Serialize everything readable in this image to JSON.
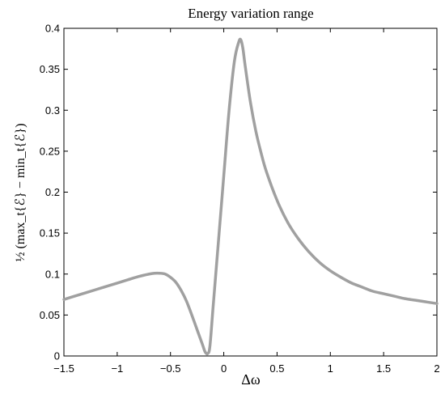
{
  "chart_data": {
    "type": "line",
    "title": "Energy variation range",
    "xlabel": "Δω",
    "ylabel": "½ (max_t{ℰ} − min_t{ℰ})",
    "xlim": [
      -1.5,
      2
    ],
    "ylim": [
      0,
      0.4
    ],
    "xticks": [
      -1.5,
      -1,
      -0.5,
      0,
      0.5,
      1,
      1.5,
      2
    ],
    "xtick_labels": [
      "−1.5",
      "−1",
      "−0.5",
      "0",
      "0.5",
      "1",
      "1.5",
      "2"
    ],
    "yticks": [
      0,
      0.05,
      0.1,
      0.15,
      0.2,
      0.25,
      0.3,
      0.35,
      0.4
    ],
    "ytick_labels": [
      "0",
      "0.05",
      "0.1",
      "0.15",
      "0.2",
      "0.25",
      "0.3",
      "0.35",
      "0.4"
    ],
    "grid": false,
    "series": [
      {
        "color": "#a0a0a0",
        "x": [
          -1.5,
          -1.4,
          -1.3,
          -1.2,
          -1.1,
          -1.0,
          -0.9,
          -0.8,
          -0.7,
          -0.65,
          -0.6,
          -0.55,
          -0.5,
          -0.45,
          -0.4,
          -0.35,
          -0.3,
          -0.25,
          -0.2,
          -0.175,
          -0.15,
          -0.13,
          -0.1,
          -0.05,
          0.0,
          0.05,
          0.1,
          0.14,
          0.16,
          0.18,
          0.2,
          0.25,
          0.3,
          0.35,
          0.4,
          0.5,
          0.6,
          0.7,
          0.8,
          0.9,
          1.0,
          1.1,
          1.2,
          1.3,
          1.4,
          1.5,
          1.6,
          1.7,
          1.8,
          1.9,
          2.0
        ],
        "y": [
          0.069,
          0.073,
          0.077,
          0.081,
          0.085,
          0.089,
          0.093,
          0.097,
          0.1,
          0.101,
          0.101,
          0.1,
          0.096,
          0.09,
          0.08,
          0.067,
          0.05,
          0.032,
          0.014,
          0.005,
          0.003,
          0.012,
          0.06,
          0.14,
          0.22,
          0.3,
          0.36,
          0.383,
          0.386,
          0.375,
          0.355,
          0.31,
          0.275,
          0.248,
          0.225,
          0.19,
          0.163,
          0.143,
          0.127,
          0.114,
          0.104,
          0.096,
          0.089,
          0.084,
          0.079,
          0.076,
          0.073,
          0.07,
          0.068,
          0.066,
          0.064
        ]
      }
    ]
  }
}
